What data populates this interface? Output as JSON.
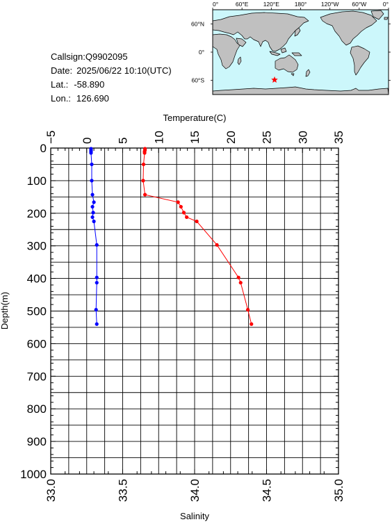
{
  "info": {
    "callsign_label": "Callsign:",
    "callsign": "Q9902095",
    "date_label": "Date:",
    "date": "2025/06/22 10:10(UTC)",
    "lat_label": "Lat.:",
    "lat": "-58.890",
    "lon_label": "Lon.:",
    "lon": "126.690"
  },
  "map": {
    "lon_labels": [
      "0°",
      "60°E",
      "120°E",
      "180°",
      "120°W",
      "60°W",
      "0°"
    ],
    "lat_labels": [
      "60°N",
      "0°",
      "60°S"
    ],
    "ocean_color": "#ccf7fb",
    "land_color": "#c0c0c0",
    "station_marker_color": "#ff0000",
    "station_marker_icon": "star"
  },
  "chart_data": {
    "type": "line",
    "top_axis_label": "Temperature(C)",
    "bottom_axis_label": "Salinity",
    "left_axis_label": "Depth(m)",
    "temperature_ticks": [
      "−5",
      "0",
      "5",
      "10",
      "15",
      "20",
      "25",
      "30",
      "35"
    ],
    "salinity_ticks": [
      "33.0",
      "33.5",
      "34.0",
      "34.5",
      "35.0"
    ],
    "depth_ticks": [
      "0",
      "100",
      "200",
      "300",
      "400",
      "500",
      "600",
      "700",
      "800",
      "900",
      "1000"
    ],
    "temperature_range": [
      -5,
      35
    ],
    "salinity_range": [
      33.0,
      35.0
    ],
    "depth_range": [
      0,
      1000
    ],
    "grid": true,
    "series": [
      {
        "name": "Salinity",
        "axis": "bottom",
        "color": "#0000ff",
        "points": [
          {
            "depth": 2,
            "value": 33.28
          },
          {
            "depth": 6,
            "value": 33.28
          },
          {
            "depth": 10,
            "value": 33.28
          },
          {
            "depth": 15,
            "value": 33.28
          },
          {
            "depth": 50,
            "value": 33.285
          },
          {
            "depth": 100,
            "value": 33.285
          },
          {
            "depth": 143,
            "value": 33.29
          },
          {
            "depth": 166,
            "value": 33.3
          },
          {
            "depth": 180,
            "value": 33.29
          },
          {
            "depth": 198,
            "value": 33.295
          },
          {
            "depth": 212,
            "value": 33.29
          },
          {
            "depth": 225,
            "value": 33.3
          },
          {
            "depth": 297,
            "value": 33.32
          },
          {
            "depth": 397,
            "value": 33.32
          },
          {
            "depth": 413,
            "value": 33.32
          },
          {
            "depth": 496,
            "value": 33.315
          },
          {
            "depth": 540,
            "value": 33.32
          }
        ]
      },
      {
        "name": "Temperature",
        "axis": "top",
        "color": "#ff0000",
        "points": [
          {
            "depth": 2,
            "value": 8.1
          },
          {
            "depth": 6,
            "value": 8.1
          },
          {
            "depth": 10,
            "value": 8.05
          },
          {
            "depth": 15,
            "value": 8.05
          },
          {
            "depth": 50,
            "value": 7.9
          },
          {
            "depth": 100,
            "value": 7.85
          },
          {
            "depth": 143,
            "value": 8.1
          },
          {
            "depth": 166,
            "value": 12.7
          },
          {
            "depth": 180,
            "value": 13.1
          },
          {
            "depth": 198,
            "value": 13.5
          },
          {
            "depth": 212,
            "value": 13.9
          },
          {
            "depth": 225,
            "value": 15.3
          },
          {
            "depth": 297,
            "value": 18.1
          },
          {
            "depth": 397,
            "value": 21.1
          },
          {
            "depth": 413,
            "value": 21.4
          },
          {
            "depth": 496,
            "value": 22.4
          },
          {
            "depth": 540,
            "value": 22.9
          }
        ]
      }
    ]
  }
}
